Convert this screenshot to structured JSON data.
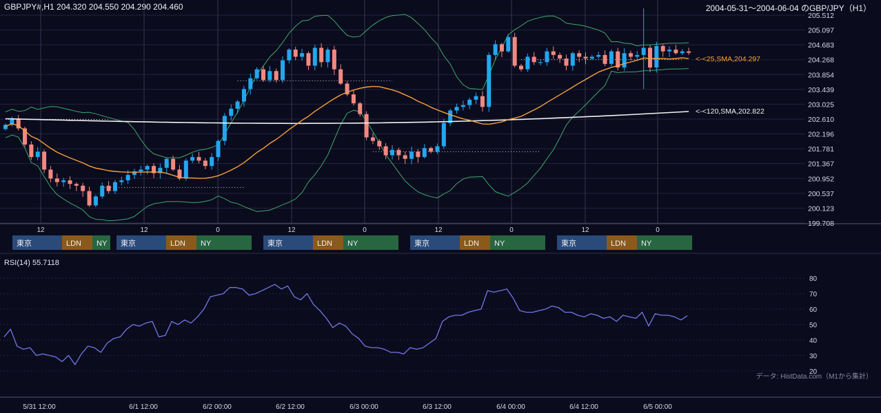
{
  "header": {
    "symbol_label": "GBPJPY#,H1 204.320 204.550 204.290 204.460",
    "range_label": "2004-05-31〜2004-06-04 のGBP/JPY（H1）"
  },
  "colors": {
    "background": "#0b0b1e",
    "grid": "#23233d",
    "bull": "#22a7f0",
    "bear": "#f08a80",
    "sma25": "#f6a23a",
    "sma120": "#f2f2f2",
    "bollinger": "#3fa86a",
    "rsi": "#6f79e6",
    "tokyo": "#2a4a7a",
    "london": "#8a5a1a",
    "newyork": "#276640"
  },
  "session_labels": {
    "tokyo": "東京",
    "london": "LDN",
    "newyork": "NY"
  },
  "annotations": {
    "sma25": "<-<25,SMA,204.297",
    "sma120": "<-<120,SMA,202.822"
  },
  "rsi_panel": {
    "label": "RSI(14) 55.7118"
  },
  "footer": {
    "source": "データ: HistData.com（M1から集計）"
  },
  "chart_data": [
    {
      "type": "candlestick",
      "ylim": [
        199.708,
        205.512
      ],
      "y_ticks": [
        "205.512",
        "205.097",
        "204.683",
        "204.268",
        "203.854",
        "203.439",
        "203.025",
        "202.610",
        "202.196",
        "201.781",
        "201.367",
        "200.952",
        "200.537",
        "200.123",
        "199.708"
      ],
      "x_ticks": [
        "12",
        "12",
        "0",
        "12",
        "0",
        "12",
        "0",
        "12",
        "0"
      ],
      "close": [
        202.45,
        202.6,
        202.35,
        201.9,
        201.55,
        201.7,
        201.2,
        200.95,
        200.85,
        200.9,
        200.8,
        200.75,
        200.6,
        200.2,
        200.45,
        200.75,
        200.6,
        200.85,
        200.9,
        201.05,
        201.15,
        201.2,
        201.3,
        201.1,
        201.25,
        201.5,
        201.2,
        200.95,
        201.45,
        201.55,
        201.45,
        201.3,
        201.55,
        202.0,
        202.7,
        202.9,
        203.1,
        203.45,
        203.75,
        204.0,
        203.7,
        203.95,
        203.7,
        204.25,
        204.55,
        204.35,
        204.45,
        204.1,
        204.6,
        204.2,
        204.55,
        204.0,
        203.6,
        203.3,
        203.05,
        202.75,
        202.1,
        202.0,
        201.85,
        201.6,
        201.75,
        201.6,
        201.5,
        201.7,
        201.55,
        201.8,
        201.7,
        201.85,
        202.5,
        202.85,
        202.95,
        203.0,
        203.15,
        203.25,
        202.95,
        204.4,
        204.7,
        204.5,
        204.9,
        204.1,
        204.0,
        204.35,
        204.2,
        204.2,
        204.5,
        204.4,
        204.3,
        204.1,
        204.45,
        204.35,
        204.3,
        204.35,
        204.4,
        204.15,
        204.5,
        204.05,
        204.45,
        204.35,
        204.4,
        204.6,
        204.05,
        204.65,
        204.5,
        204.55,
        204.45,
        204.5,
        204.46
      ],
      "ma25_end": 204.297,
      "ma120_end": 202.822
    },
    {
      "type": "line",
      "title": "RSI(14)",
      "ylim": [
        15,
        85
      ],
      "y_ticks": [
        20,
        30,
        40,
        50,
        60,
        70,
        80
      ],
      "x_tick_labels": [
        "5/31 12:00",
        "6/1 12:00",
        "6/2 00:00",
        "6/2 12:00",
        "6/3 00:00",
        "6/3 12:00",
        "6/4 00:00",
        "6/4 12:00",
        "6/5 00:00"
      ],
      "values": [
        42,
        47,
        36,
        34,
        35,
        30,
        31,
        30,
        29,
        26,
        30,
        24,
        31,
        36,
        35,
        32,
        38,
        41,
        42,
        47,
        50,
        49,
        51,
        52,
        42,
        43,
        52,
        50,
        53,
        51,
        55,
        60,
        68,
        69,
        70,
        74,
        74,
        73,
        69,
        70,
        72,
        74,
        76,
        73,
        75,
        68,
        66,
        70,
        63,
        59,
        54,
        48,
        51,
        49,
        44,
        41,
        36,
        35,
        35,
        34,
        32,
        32,
        31,
        35,
        34,
        35,
        38,
        41,
        52,
        55,
        56,
        56,
        58,
        59,
        60,
        72,
        71,
        72,
        73,
        67,
        59,
        58,
        58,
        59,
        60,
        62,
        61,
        58,
        58,
        56,
        55,
        57,
        56,
        54,
        55,
        52,
        56,
        55,
        54,
        58,
        49,
        57,
        56,
        56,
        55,
        53,
        55.7
      ]
    }
  ]
}
